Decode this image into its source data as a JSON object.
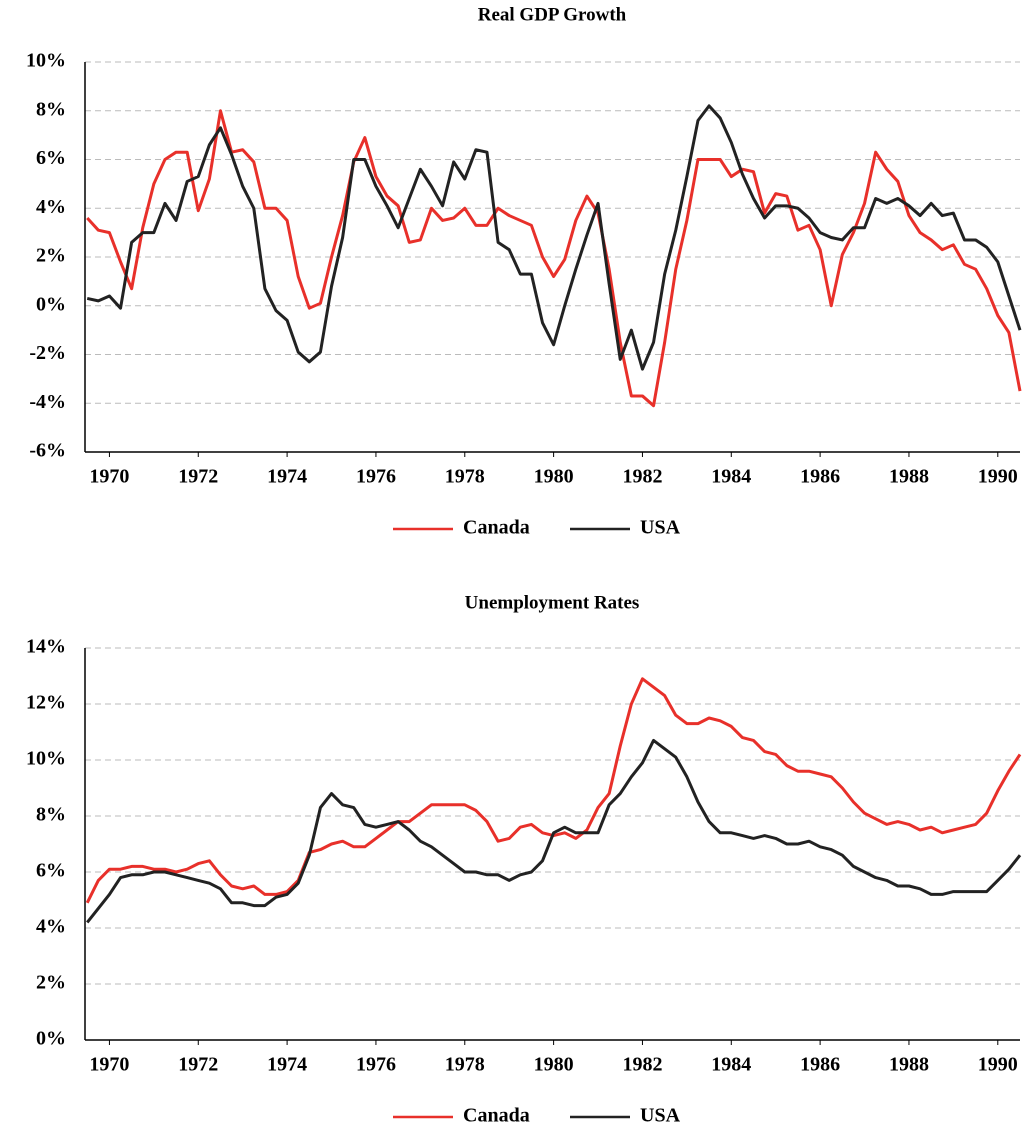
{
  "chart_data": [
    {
      "type": "line",
      "title": "Real GDP Growth",
      "x": [
        1969.5,
        1969.75,
        1970,
        1970.25,
        1970.5,
        1970.75,
        1971,
        1971.25,
        1971.5,
        1971.75,
        1972,
        1972.25,
        1972.5,
        1972.75,
        1973,
        1973.25,
        1973.5,
        1973.75,
        1974,
        1974.25,
        1974.5,
        1974.75,
        1975,
        1975.25,
        1975.5,
        1975.75,
        1976,
        1976.25,
        1976.5,
        1976.75,
        1977,
        1977.25,
        1977.5,
        1977.75,
        1978,
        1978.25,
        1978.5,
        1978.75,
        1979,
        1979.25,
        1979.5,
        1979.75,
        1980,
        1980.25,
        1980.5,
        1980.75,
        1981,
        1981.25,
        1981.5,
        1981.75,
        1982,
        1982.25,
        1982.5,
        1982.75,
        1983,
        1983.25,
        1983.5,
        1983.75,
        1984,
        1984.25,
        1984.5,
        1984.75,
        1985,
        1985.25,
        1985.5,
        1985.75,
        1986,
        1986.25,
        1986.5,
        1986.75,
        1987,
        1987.25,
        1987.5,
        1987.75,
        1988,
        1988.25,
        1988.5,
        1988.75,
        1989,
        1989.25,
        1989.5,
        1989.75,
        1990,
        1990.25,
        1990.5
      ],
      "series": [
        {
          "name": "Canada",
          "color": "#e8302a",
          "values": [
            3.6,
            3.1,
            3.0,
            1.8,
            0.7,
            3.2,
            5.0,
            6.0,
            6.3,
            6.3,
            3.9,
            5.2,
            8.0,
            6.3,
            6.4,
            5.9,
            4.0,
            4.0,
            3.5,
            1.2,
            -0.1,
            0.1,
            2.0,
            3.7,
            5.9,
            6.9,
            5.3,
            4.5,
            4.1,
            2.6,
            2.7,
            4.0,
            3.5,
            3.6,
            4.0,
            3.3,
            3.3,
            4.0,
            3.7,
            3.5,
            3.3,
            2.0,
            1.2,
            1.9,
            3.5,
            4.5,
            3.8,
            1.5,
            -1.5,
            -3.7,
            -3.7,
            -4.1,
            -1.5,
            1.5,
            3.5,
            6.0,
            6.0,
            6.0,
            5.3,
            5.6,
            5.5,
            3.8,
            4.6,
            4.5,
            3.1,
            3.3,
            2.3,
            0.0,
            2.1,
            3.0,
            4.2,
            6.3,
            5.6,
            5.1,
            3.7,
            3.0,
            2.7,
            2.3,
            2.5,
            1.7,
            1.5,
            0.7,
            -0.4,
            -1.1,
            -3.5
          ]
        },
        {
          "name": "USA",
          "color": "#222222",
          "values": [
            0.3,
            0.2,
            0.4,
            -0.1,
            2.6,
            3.0,
            3.0,
            4.2,
            3.5,
            5.1,
            5.3,
            6.6,
            7.3,
            6.2,
            4.9,
            4.0,
            0.7,
            -0.2,
            -0.6,
            -1.9,
            -2.3,
            -1.9,
            0.8,
            2.8,
            6.0,
            6.0,
            4.9,
            4.1,
            3.2,
            4.4,
            5.6,
            4.9,
            4.1,
            5.9,
            5.2,
            6.4,
            6.3,
            2.6,
            2.3,
            1.3,
            1.3,
            -0.7,
            -1.6,
            0.0,
            1.5,
            2.9,
            4.2,
            0.9,
            -2.2,
            -1.0,
            -2.6,
            -1.5,
            1.3,
            3.1,
            5.3,
            7.6,
            8.2,
            7.7,
            6.7,
            5.4,
            4.4,
            3.6,
            4.1,
            4.1,
            4.0,
            3.6,
            3.0,
            2.8,
            2.7,
            3.2,
            3.2,
            4.4,
            4.2,
            4.4,
            4.1,
            3.7,
            4.2,
            3.7,
            3.8,
            2.7,
            2.7,
            2.4,
            1.8,
            0.4,
            -1.0
          ]
        }
      ],
      "xlim": [
        1969.45,
        1990.5
      ],
      "xticks": [
        1970,
        1972,
        1974,
        1976,
        1978,
        1980,
        1982,
        1984,
        1986,
        1988,
        1990
      ],
      "ylim": [
        -6,
        10
      ],
      "yticks": [
        {
          "value": -6,
          "label": "-6%"
        },
        {
          "value": -4,
          "label": "-4%"
        },
        {
          "value": -2,
          "label": "-2%"
        },
        {
          "value": 0,
          "label": "0%"
        },
        {
          "value": 2,
          "label": "2%"
        },
        {
          "value": 4,
          "label": "4%"
        },
        {
          "value": 6,
          "label": "6%"
        },
        {
          "value": 8,
          "label": "8%"
        },
        {
          "value": 10,
          "label": "10%"
        }
      ],
      "grid": true,
      "legend": "bottom"
    },
    {
      "type": "line",
      "title": "Unemployment Rates",
      "x": [
        1969.5,
        1969.75,
        1970,
        1970.25,
        1970.5,
        1970.75,
        1971,
        1971.25,
        1971.5,
        1971.75,
        1972,
        1972.25,
        1972.5,
        1972.75,
        1973,
        1973.25,
        1973.5,
        1973.75,
        1974,
        1974.25,
        1974.5,
        1974.75,
        1975,
        1975.25,
        1975.5,
        1975.75,
        1976,
        1976.25,
        1976.5,
        1976.75,
        1977,
        1977.25,
        1977.5,
        1977.75,
        1978,
        1978.25,
        1978.5,
        1978.75,
        1979,
        1979.25,
        1979.5,
        1979.75,
        1980,
        1980.25,
        1980.5,
        1980.75,
        1981,
        1981.25,
        1981.5,
        1981.75,
        1982,
        1982.25,
        1982.5,
        1982.75,
        1983,
        1983.25,
        1983.5,
        1983.75,
        1984,
        1984.25,
        1984.5,
        1984.75,
        1985,
        1985.25,
        1985.5,
        1985.75,
        1986,
        1986.25,
        1986.5,
        1986.75,
        1987,
        1987.25,
        1987.5,
        1987.75,
        1988,
        1988.25,
        1988.5,
        1988.75,
        1989,
        1989.25,
        1989.5,
        1989.75,
        1990,
        1990.25,
        1990.5
      ],
      "series": [
        {
          "name": "Canada",
          "color": "#e8302a",
          "values": [
            4.9,
            5.7,
            6.1,
            6.1,
            6.2,
            6.2,
            6.1,
            6.1,
            6.0,
            6.1,
            6.3,
            6.4,
            5.9,
            5.5,
            5.4,
            5.5,
            5.2,
            5.2,
            5.3,
            5.7,
            6.7,
            6.8,
            7.0,
            7.1,
            6.9,
            6.9,
            7.2,
            7.5,
            7.8,
            7.8,
            8.1,
            8.4,
            8.4,
            8.4,
            8.4,
            8.2,
            7.8,
            7.1,
            7.2,
            7.6,
            7.7,
            7.4,
            7.3,
            7.4,
            7.2,
            7.5,
            8.3,
            8.8,
            10.5,
            12.0,
            12.9,
            12.6,
            12.3,
            11.6,
            11.3,
            11.3,
            11.5,
            11.4,
            11.2,
            10.8,
            10.7,
            10.3,
            10.2,
            9.8,
            9.6,
            9.6,
            9.5,
            9.4,
            9.0,
            8.5,
            8.1,
            7.9,
            7.7,
            7.8,
            7.7,
            7.5,
            7.6,
            7.4,
            7.5,
            7.6,
            7.7,
            8.1,
            8.9,
            9.6,
            10.2
          ]
        },
        {
          "name": "USA",
          "color": "#222222",
          "values": [
            4.2,
            4.7,
            5.2,
            5.8,
            5.9,
            5.9,
            6.0,
            6.0,
            5.9,
            5.8,
            5.7,
            5.6,
            5.4,
            4.9,
            4.9,
            4.8,
            4.8,
            5.1,
            5.2,
            5.6,
            6.6,
            8.3,
            8.8,
            8.4,
            8.3,
            7.7,
            7.6,
            7.7,
            7.8,
            7.5,
            7.1,
            6.9,
            6.6,
            6.3,
            6.0,
            6.0,
            5.9,
            5.9,
            5.7,
            5.9,
            6.0,
            6.4,
            7.4,
            7.6,
            7.4,
            7.4,
            7.4,
            8.4,
            8.8,
            9.4,
            9.9,
            10.7,
            10.4,
            10.1,
            9.4,
            8.5,
            7.8,
            7.4,
            7.4,
            7.3,
            7.2,
            7.3,
            7.2,
            7.0,
            7.0,
            7.1,
            6.9,
            6.8,
            6.6,
            6.2,
            6.0,
            5.8,
            5.7,
            5.5,
            5.5,
            5.4,
            5.2,
            5.2,
            5.3,
            5.3,
            5.3,
            5.3,
            5.7,
            6.1,
            6.6
          ]
        }
      ],
      "xlim": [
        1969.45,
        1990.5
      ],
      "xticks": [
        1970,
        1972,
        1974,
        1976,
        1978,
        1980,
        1982,
        1984,
        1986,
        1988,
        1990
      ],
      "ylim": [
        0,
        14
      ],
      "yticks": [
        {
          "value": 0,
          "label": "0%"
        },
        {
          "value": 2,
          "label": "2%"
        },
        {
          "value": 4,
          "label": "4%"
        },
        {
          "value": 6,
          "label": "6%"
        },
        {
          "value": 8,
          "label": "8%"
        },
        {
          "value": 10,
          "label": "10%"
        },
        {
          "value": 12,
          "label": "12%"
        },
        {
          "value": 14,
          "label": "14%"
        }
      ],
      "grid": true,
      "legend": "bottom"
    }
  ]
}
